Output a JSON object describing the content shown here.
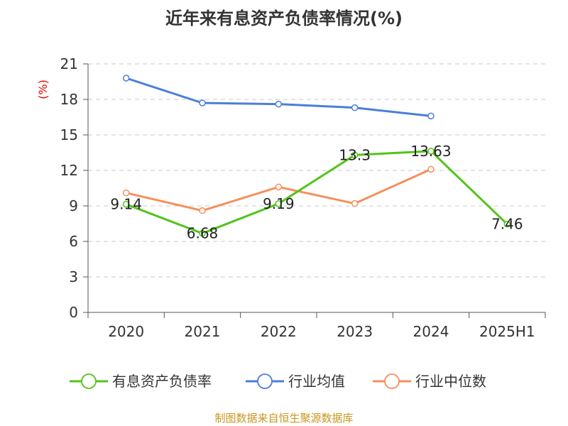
{
  "chart_data": {
    "type": "line",
    "title": "近年来有息资产负债率情况(%)",
    "ylabel": "(%)",
    "xlabel": "",
    "categories": [
      "2020",
      "2021",
      "2022",
      "2023",
      "2024",
      "2025H1"
    ],
    "ylim": [
      0,
      21
    ],
    "yticks": [
      0,
      3,
      6,
      9,
      12,
      15,
      18,
      21
    ],
    "grid": true,
    "legend_position": "bottom",
    "series": [
      {
        "name": "有息资产负债率",
        "color": "#52c41a",
        "values": [
          9.14,
          6.68,
          9.19,
          13.3,
          13.63,
          7.46
        ],
        "labels": [
          "9.14",
          "6.68",
          "9.19",
          "13.3",
          "13.63",
          "7.46"
        ]
      },
      {
        "name": "行业均值",
        "color": "#4a7fd8",
        "values": [
          19.8,
          17.7,
          17.6,
          17.3,
          16.6,
          null
        ]
      },
      {
        "name": "行业中位数",
        "color": "#f4905c",
        "values": [
          10.1,
          8.6,
          10.6,
          9.2,
          12.1,
          null
        ]
      }
    ],
    "source": "制图数据来自恒生聚源数据库"
  }
}
